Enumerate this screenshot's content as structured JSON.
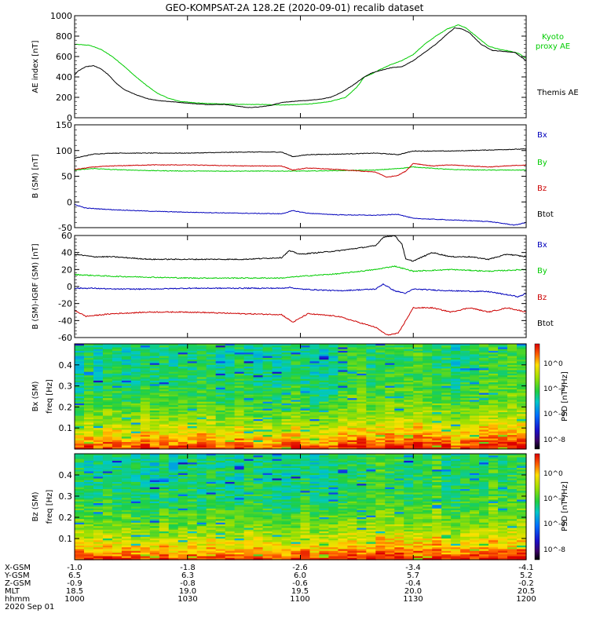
{
  "title": "GEO-KOMPSAT-2A 128.2E (2020-09-01) recalib dataset",
  "chart_data": [
    {
      "type": "line",
      "ylabel": "AE index [nT]",
      "ylim": [
        0,
        1000
      ],
      "yticks": [
        0,
        200,
        400,
        600,
        800,
        1000
      ],
      "xlim": [
        0,
        120
      ],
      "x_unit": "minutes after 10:00 UT",
      "series": [
        {
          "name": "Kyoto proxy AE",
          "color": "#00cc00",
          "x": [
            0,
            4,
            7,
            10,
            13,
            16,
            19,
            22,
            25,
            28,
            31,
            35,
            40,
            45,
            50,
            55,
            60,
            64,
            68,
            72,
            75,
            77,
            79,
            81,
            84,
            87,
            90,
            93,
            96,
            99,
            102,
            104,
            106,
            108,
            110,
            113,
            116,
            118,
            120
          ],
          "y": [
            720,
            710,
            670,
            600,
            510,
            410,
            320,
            240,
            190,
            160,
            150,
            140,
            135,
            130,
            130,
            125,
            130,
            140,
            160,
            200,
            300,
            400,
            430,
            470,
            520,
            560,
            620,
            720,
            800,
            870,
            910,
            880,
            820,
            760,
            700,
            670,
            650,
            630,
            580
          ]
        },
        {
          "name": "Themis AE",
          "color": "#000000",
          "x": [
            0,
            1,
            3,
            5,
            7,
            9,
            11,
            13,
            16,
            19,
            22,
            25,
            28,
            31,
            35,
            40,
            44,
            46,
            49,
            52,
            55,
            58,
            62,
            65,
            68,
            71,
            74,
            77,
            79,
            81,
            84,
            87,
            90,
            93,
            96,
            99,
            101,
            103,
            105,
            108,
            111,
            114,
            117,
            120
          ],
          "y": [
            420,
            460,
            500,
            510,
            480,
            420,
            340,
            280,
            230,
            190,
            170,
            160,
            150,
            140,
            130,
            130,
            110,
            100,
            105,
            120,
            150,
            160,
            170,
            180,
            200,
            250,
            320,
            400,
            440,
            460,
            490,
            500,
            560,
            640,
            720,
            820,
            880,
            870,
            830,
            720,
            660,
            650,
            640,
            560
          ]
        }
      ]
    },
    {
      "type": "line",
      "ylabel": "B (SM) [nT]",
      "ylim": [
        -50,
        150
      ],
      "yticks": [
        -50,
        0,
        50,
        100,
        150
      ],
      "xlim": [
        0,
        120
      ],
      "series": [
        {
          "name": "Btot",
          "color": "#000000",
          "x": [
            0,
            5,
            10,
            20,
            30,
            45,
            55,
            58,
            62,
            70,
            80,
            86,
            90,
            100,
            110,
            120
          ],
          "y": [
            85,
            93,
            95,
            95,
            95,
            97,
            97,
            88,
            92,
            93,
            95,
            92,
            99,
            99,
            101,
            103
          ]
        },
        {
          "name": "By",
          "color": "#00cc00",
          "x": [
            0,
            5,
            10,
            20,
            30,
            45,
            55,
            58,
            62,
            70,
            80,
            86,
            90,
            100,
            110,
            120
          ],
          "y": [
            62,
            65,
            63,
            61,
            60,
            60,
            60,
            60,
            60,
            61,
            62,
            65,
            68,
            63,
            62,
            62
          ]
        },
        {
          "name": "Bz",
          "color": "#cc0000",
          "x": [
            0,
            5,
            10,
            20,
            30,
            45,
            55,
            58,
            62,
            70,
            80,
            83,
            86,
            88,
            90,
            95,
            100,
            110,
            120
          ],
          "y": [
            63,
            68,
            70,
            72,
            72,
            70,
            70,
            62,
            66,
            63,
            58,
            48,
            52,
            60,
            75,
            70,
            72,
            68,
            72
          ]
        },
        {
          "name": "Bx",
          "color": "#0000bb",
          "x": [
            0,
            3,
            10,
            20,
            30,
            45,
            55,
            58,
            62,
            70,
            80,
            86,
            90,
            100,
            110,
            117,
            120
          ],
          "y": [
            -5,
            -12,
            -15,
            -18,
            -20,
            -22,
            -23,
            -17,
            -22,
            -25,
            -26,
            -24,
            -32,
            -35,
            -38,
            -45,
            -40
          ]
        }
      ]
    },
    {
      "type": "line",
      "ylabel": "B (SM)-IGRF (SM) [nT]",
      "ylim": [
        -60,
        60
      ],
      "yticks": [
        -60,
        -40,
        -20,
        0,
        20,
        40,
        60
      ],
      "xlim": [
        0,
        120
      ],
      "series": [
        {
          "name": "Btot",
          "color": "#000000",
          "x": [
            0,
            5,
            10,
            20,
            30,
            45,
            55,
            57,
            60,
            65,
            70,
            75,
            80,
            82,
            85,
            87,
            88,
            90,
            95,
            100,
            105,
            110,
            115,
            120
          ],
          "y": [
            38,
            35,
            35,
            32,
            32,
            32,
            34,
            42,
            38,
            40,
            42,
            45,
            48,
            58,
            60,
            50,
            32,
            30,
            40,
            35,
            35,
            32,
            38,
            35
          ]
        },
        {
          "name": "By",
          "color": "#00cc00",
          "x": [
            0,
            5,
            10,
            20,
            30,
            45,
            55,
            60,
            70,
            80,
            85,
            90,
            100,
            110,
            120
          ],
          "y": [
            14,
            13,
            12,
            11,
            10,
            10,
            10,
            12,
            15,
            20,
            24,
            18,
            20,
            18,
            20
          ]
        },
        {
          "name": "Bx",
          "color": "#0000bb",
          "x": [
            0,
            5,
            10,
            20,
            30,
            45,
            55,
            57,
            60,
            70,
            80,
            82,
            85,
            88,
            90,
            100,
            110,
            118,
            120
          ],
          "y": [
            -2,
            -2,
            -3,
            -3,
            -2,
            -2,
            -2,
            -1,
            -3,
            -5,
            -3,
            3,
            -5,
            -8,
            -3,
            -5,
            -6,
            -12,
            -8
          ]
        },
        {
          "name": "Bz",
          "color": "#cc0000",
          "x": [
            0,
            3,
            10,
            20,
            30,
            45,
            55,
            58,
            62,
            70,
            80,
            83,
            86,
            88,
            90,
            95,
            100,
            105,
            110,
            115,
            120
          ],
          "y": [
            -28,
            -35,
            -32,
            -30,
            -30,
            -32,
            -33,
            -42,
            -32,
            -35,
            -48,
            -57,
            -55,
            -40,
            -25,
            -25,
            -30,
            -25,
            -30,
            -25,
            -30
          ]
        }
      ]
    },
    {
      "type": "heatmap",
      "ylabel_top": "Bx (SM)",
      "ylabel": "freq [Hz]",
      "ylim": [
        0,
        0.5
      ],
      "yticks": [
        0.1,
        0.2,
        0.3,
        0.4
      ],
      "colorbar_label": "PSD [nT²/Hz]",
      "colorbar_ticks": [
        "10^0",
        "10^-2",
        "10^-4",
        "10^-8"
      ]
    },
    {
      "type": "heatmap",
      "ylabel_top": "Bz (SM)",
      "ylabel": "freq [Hz]",
      "ylim": [
        0,
        0.5
      ],
      "yticks": [
        0.1,
        0.2,
        0.3,
        0.4
      ],
      "colorbar_label": "PSD [nT²/Hz]",
      "colorbar_ticks": [
        "10^0",
        "10^-2",
        "10^-4",
        "10^-8"
      ]
    }
  ],
  "legends": {
    "panel1": [
      "Kyoto\nproxy AE",
      "Themis AE"
    ],
    "panel2": [
      "Bx",
      "By",
      "Bz",
      "Btot"
    ],
    "panel3": [
      "Bx",
      "By",
      "Bz",
      "Btot"
    ]
  },
  "orbit_table": {
    "rows": [
      {
        "label": "X-GSM",
        "values": [
          "-1.0",
          "-1.8",
          "-2.6",
          "-3.4",
          "-4.1"
        ]
      },
      {
        "label": "Y-GSM",
        "values": [
          "6.5",
          "6.3",
          "6.0",
          "5.7",
          "5.2"
        ]
      },
      {
        "label": "Z-GSM",
        "values": [
          "-0.9",
          "-0.8",
          "-0.6",
          "-0.4",
          "-0.2"
        ]
      },
      {
        "label": "MLT",
        "values": [
          "18.5",
          "19.0",
          "19.5",
          "20.0",
          "20.5"
        ]
      },
      {
        "label": "hhmm",
        "values": [
          "1000",
          "1030",
          "1100",
          "1130",
          "1200"
        ]
      }
    ],
    "date": "2020 Sep 01"
  },
  "colors": {
    "kyoto": "#00cc00",
    "themis": "#000000",
    "bx": "#0000bb",
    "by": "#00cc00",
    "bz": "#cc0000",
    "btot": "#000000"
  }
}
